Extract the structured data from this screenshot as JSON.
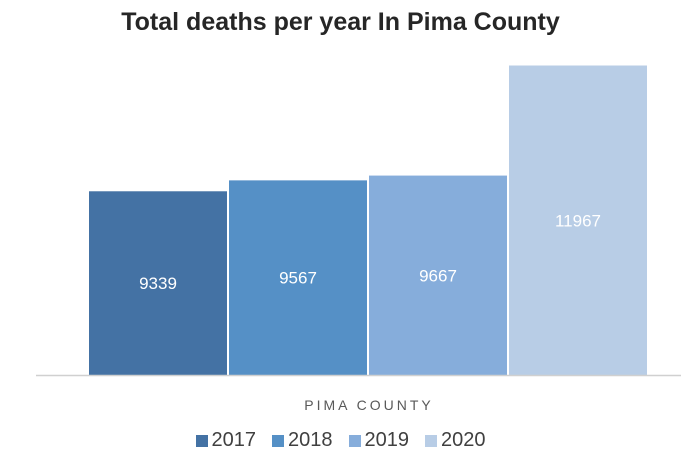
{
  "chart_data": {
    "type": "bar",
    "title": "Total deaths per year In Pima County",
    "categories": [
      "PIMA COUNTY"
    ],
    "series": [
      {
        "name": "2017",
        "values": [
          9339
        ],
        "color": "#4472a4"
      },
      {
        "name": "2018",
        "values": [
          9567
        ],
        "color": "#5590c6"
      },
      {
        "name": "2019",
        "values": [
          9667
        ],
        "color": "#86addb"
      },
      {
        "name": "2020",
        "values": [
          11967
        ],
        "color": "#b8cde6"
      }
    ],
    "xlabel": "",
    "ylabel": "",
    "ylim": [
      5500,
      12500
    ],
    "grid": false,
    "legend": "bottom",
    "data_labels": true
  }
}
